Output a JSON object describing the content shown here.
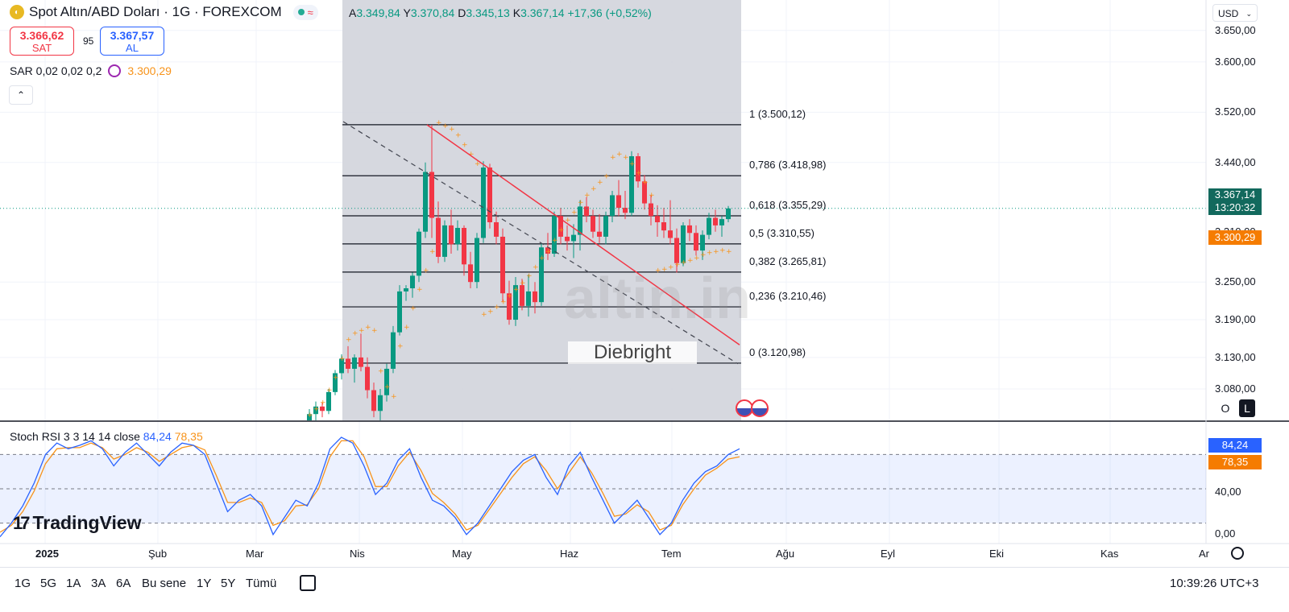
{
  "header": {
    "symbol_title": "Spot Altın/ABD Doları · 1G · FOREXCOM",
    "ohlc": {
      "o_label": "A",
      "o": "3.349,84",
      "h_label": "Y",
      "h": "3.370,84",
      "l_label": "D",
      "l": "3.345,13",
      "c_label": "K",
      "c": "3.367,14",
      "change": "+17,36 (+0,52%)"
    },
    "sell_price": "3.366,62",
    "sell_label": "SAT",
    "spread": "95",
    "buy_price": "3.367,57",
    "buy_label": "AL",
    "sar_label": "SAR 0,02 0,02 0,2",
    "sar_value": "3.300,29",
    "collapse_icon": "chevron-up-icon"
  },
  "currency": "USD",
  "price_axis": {
    "labels": [
      "3.650,00",
      "3.600,00",
      "3.520,00",
      "3.440,00",
      "3.250,00",
      "3.190,00",
      "3.130,00",
      "3.080,00"
    ],
    "label_values": [
      3650,
      3600,
      3520,
      3440,
      3250,
      3190,
      3130,
      3080
    ],
    "current_price": "3.367,14",
    "countdown": "13:20:32",
    "sar_tag": "3.300,29",
    "hidden_label": "3.310,00"
  },
  "fib_levels": [
    {
      "label": "1 (3.500,12)",
      "value": 3500.12
    },
    {
      "label": "0,786 (3.418,98)",
      "value": 3418.98
    },
    {
      "label": "0,618 (3.355,29)",
      "value": 3355.29
    },
    {
      "label": "0,5 (3.310,55)",
      "value": 3310.55
    },
    {
      "label": "0,382 (3.265,81)",
      "value": 3265.81
    },
    {
      "label": "0,236 (3.210,46)",
      "value": 3210.46
    },
    {
      "label": "0 (3.120,98)",
      "value": 3120.98
    }
  ],
  "watermark": {
    "brand": "altin.in",
    "author": "Diebright"
  },
  "stoch": {
    "title": "Stoch RSI 3 3 14 14 close",
    "k": "84,24",
    "d": "78,35",
    "axis_labels": [
      "40,00",
      "0,00"
    ],
    "colors": {
      "k": "#2962ff",
      "d": "#f7931a"
    }
  },
  "x_axis": {
    "labels": [
      "2025",
      "Şub",
      "Mar",
      "Nis",
      "May",
      "Haz",
      "Tem",
      "Ağu",
      "Eyl",
      "Eki",
      "Kas",
      "Ar"
    ]
  },
  "timeframes": [
    "1G",
    "5G",
    "1A",
    "3A",
    "6A",
    "Bu sene",
    "1Y",
    "5Y",
    "Tümü"
  ],
  "clock": "10:39:26 UTC+3",
  "logo": "TradingView",
  "scale_buttons": {
    "o": "O",
    "l": "L"
  },
  "chart_data": {
    "type": "candlestick",
    "title": "Spot Altın/ABD Doları · 1G · FOREXCOM",
    "ylim": [
      3030,
      3660
    ],
    "candles_start": "2025-03-24",
    "candles": [
      [
        3025,
        3048,
        3015,
        3040
      ],
      [
        3040,
        3060,
        3030,
        3052
      ],
      [
        3052,
        3058,
        3035,
        3045
      ],
      [
        3045,
        3080,
        3040,
        3075
      ],
      [
        3075,
        3110,
        3070,
        3105
      ],
      [
        3105,
        3135,
        3095,
        3128
      ],
      [
        3128,
        3148,
        3105,
        3112
      ],
      [
        3112,
        3135,
        3090,
        3130
      ],
      [
        3130,
        3168,
        3108,
        3115
      ],
      [
        3115,
        3130,
        3065,
        3078
      ],
      [
        3078,
        3090,
        3035,
        3045
      ],
      [
        3045,
        3080,
        3020,
        3070
      ],
      [
        3070,
        3120,
        3060,
        3112
      ],
      [
        3112,
        3180,
        3105,
        3170
      ],
      [
        3170,
        3245,
        3165,
        3235
      ],
      [
        3235,
        3245,
        3220,
        3240
      ],
      [
        3240,
        3265,
        3225,
        3260
      ],
      [
        3260,
        3335,
        3250,
        3330
      ],
      [
        3330,
        3440,
        3320,
        3425
      ],
      [
        3425,
        3500,
        3320,
        3352
      ],
      [
        3352,
        3378,
        3280,
        3290
      ],
      [
        3290,
        3348,
        3282,
        3340
      ],
      [
        3340,
        3365,
        3295,
        3310
      ],
      [
        3310,
        3348,
        3300,
        3336
      ],
      [
        3336,
        3340,
        3260,
        3278
      ],
      [
        3278,
        3298,
        3240,
        3250
      ],
      [
        3250,
        3328,
        3240,
        3320
      ],
      [
        3320,
        3442,
        3312,
        3432
      ],
      [
        3432,
        3438,
        3335,
        3345
      ],
      [
        3345,
        3362,
        3310,
        3322
      ],
      [
        3322,
        3335,
        3218,
        3232
      ],
      [
        3232,
        3252,
        3182,
        3190
      ],
      [
        3190,
        3258,
        3180,
        3245
      ],
      [
        3245,
        3255,
        3205,
        3212
      ],
      [
        3212,
        3262,
        3195,
        3235
      ],
      [
        3235,
        3250,
        3200,
        3218
      ],
      [
        3218,
        3312,
        3212,
        3305
      ],
      [
        3305,
        3328,
        3285,
        3295
      ],
      [
        3295,
        3362,
        3290,
        3355
      ],
      [
        3355,
        3368,
        3310,
        3322
      ],
      [
        3322,
        3340,
        3300,
        3315
      ],
      [
        3315,
        3342,
        3288,
        3325
      ],
      [
        3325,
        3380,
        3300,
        3370
      ],
      [
        3370,
        3385,
        3345,
        3355
      ],
      [
        3355,
        3365,
        3320,
        3330
      ],
      [
        3330,
        3358,
        3312,
        3322
      ],
      [
        3322,
        3362,
        3310,
        3355
      ],
      [
        3355,
        3395,
        3345,
        3388
      ],
      [
        3388,
        3412,
        3355,
        3368
      ],
      [
        3368,
        3395,
        3350,
        3360
      ],
      [
        3360,
        3458,
        3355,
        3450
      ],
      [
        3450,
        3455,
        3400,
        3410
      ],
      [
        3410,
        3420,
        3365,
        3375
      ],
      [
        3375,
        3388,
        3340,
        3355
      ],
      [
        3355,
        3372,
        3322,
        3345
      ],
      [
        3345,
        3368,
        3320,
        3332
      ],
      [
        3332,
        3380,
        3310,
        3320
      ],
      [
        3320,
        3335,
        3265,
        3280
      ],
      [
        3280,
        3345,
        3275,
        3340
      ],
      [
        3340,
        3350,
        3315,
        3328
      ],
      [
        3328,
        3340,
        3292,
        3300
      ],
      [
        3300,
        3332,
        3285,
        3325
      ],
      [
        3325,
        3360,
        3318,
        3352
      ],
      [
        3352,
        3365,
        3330,
        3340
      ],
      [
        3340,
        3355,
        3322,
        3350
      ],
      [
        3350,
        3371,
        3345,
        3367
      ]
    ],
    "parabolic_sar": [
      [
        0,
        3000
      ],
      [
        4,
        3005
      ],
      [
        8,
        3040
      ],
      [
        12,
        3130
      ],
      [
        14,
        3160
      ],
      [
        16,
        3170
      ],
      [
        18,
        3180
      ],
      [
        19,
        3500
      ],
      [
        20,
        3495
      ],
      [
        22,
        3485
      ],
      [
        24,
        3470
      ],
      [
        26,
        3455
      ],
      [
        28,
        3445
      ],
      [
        30,
        3430
      ],
      [
        32,
        3200
      ],
      [
        34,
        3210
      ],
      [
        36,
        3225
      ],
      [
        38,
        3240
      ],
      [
        40,
        3260
      ],
      [
        42,
        3275
      ],
      [
        44,
        3290
      ],
      [
        46,
        3300
      ],
      [
        48,
        3315
      ],
      [
        50,
        3330
      ],
      [
        52,
        3450
      ],
      [
        54,
        3445
      ],
      [
        56,
        3435
      ],
      [
        58,
        3420
      ],
      [
        60,
        3405
      ],
      [
        62,
        3280
      ],
      [
        63,
        3285
      ],
      [
        64,
        3295
      ],
      [
        65,
        3300
      ]
    ],
    "stoch_k": [
      8,
      20,
      35,
      55,
      80,
      90,
      85,
      88,
      92,
      85,
      70,
      82,
      90,
      80,
      70,
      82,
      90,
      88,
      80,
      55,
      30,
      40,
      45,
      35,
      10,
      25,
      40,
      35,
      55,
      85,
      95,
      90,
      70,
      45,
      55,
      75,
      85,
      60,
      40,
      35,
      25,
      10,
      20,
      35,
      50,
      65,
      75,
      80,
      60,
      45,
      70,
      82,
      60,
      40,
      20,
      30,
      40,
      25,
      10,
      20,
      40,
      55,
      65,
      70,
      80,
      85
    ],
    "stoch_d": [
      12,
      18,
      30,
      48,
      72,
      85,
      86,
      86,
      90,
      86,
      76,
      80,
      86,
      82,
      74,
      80,
      86,
      88,
      84,
      62,
      38,
      38,
      42,
      38,
      18,
      22,
      35,
      36,
      50,
      78,
      92,
      92,
      78,
      52,
      52,
      70,
      82,
      66,
      46,
      38,
      28,
      14,
      18,
      32,
      46,
      60,
      72,
      78,
      66,
      50,
      64,
      78,
      64,
      46,
      26,
      28,
      36,
      30,
      14,
      18,
      36,
      50,
      62,
      68,
      76,
      78
    ]
  }
}
